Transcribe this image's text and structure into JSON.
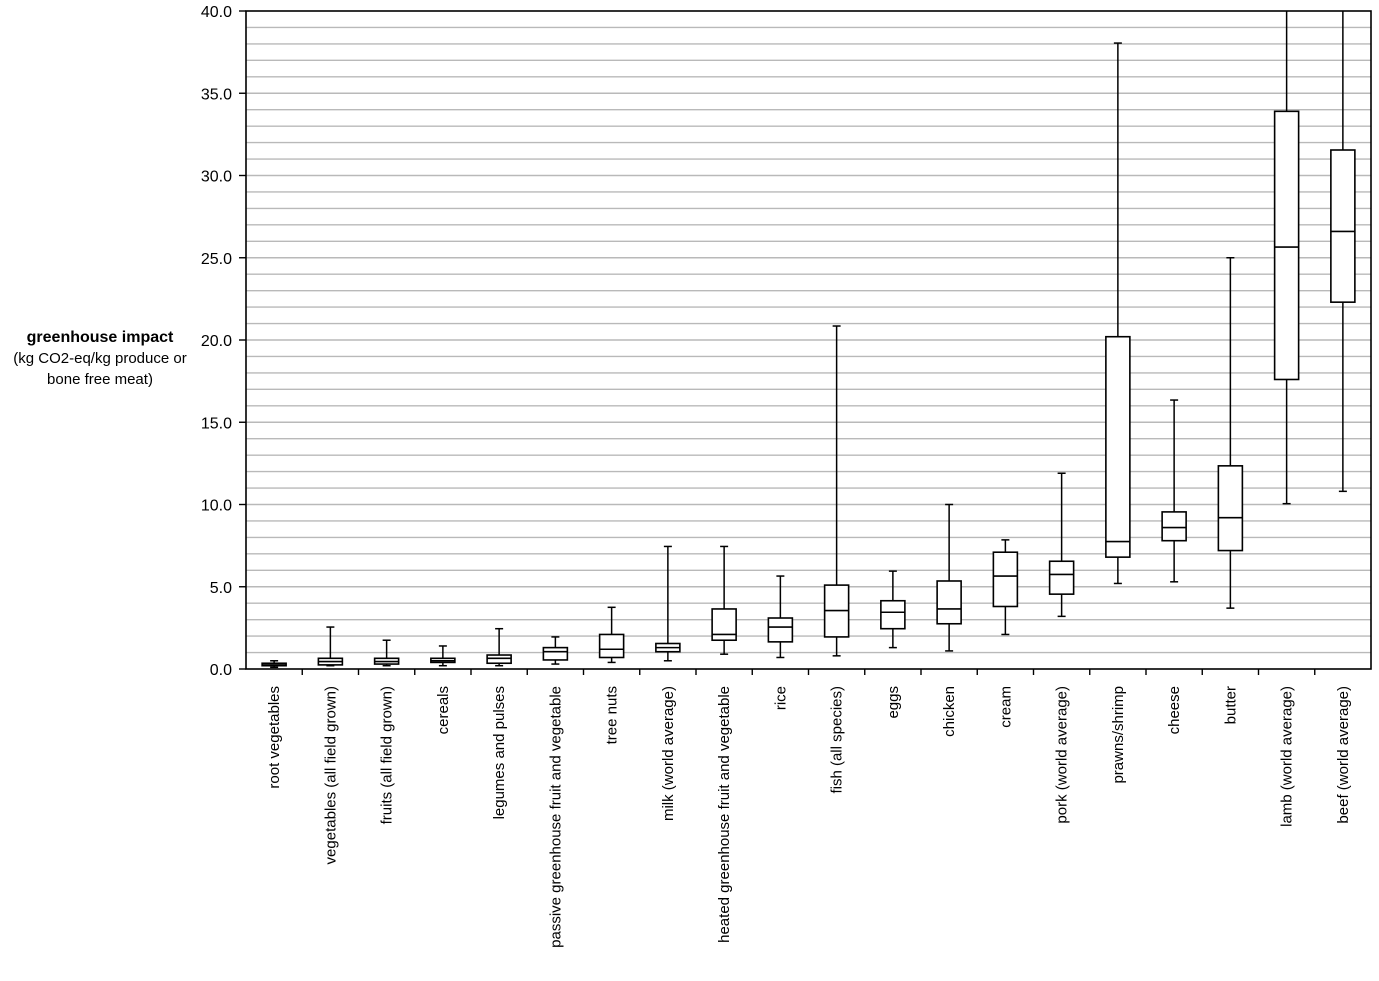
{
  "chart_data": {
    "type": "boxplot",
    "ylabel": "greenhouse impact",
    "ylabel_unit": "(kg CO2-eq/kg produce or bone free meat)",
    "ylim": [
      0,
      40
    ],
    "yticks": [
      "0.0",
      "5.0",
      "10.0",
      "15.0",
      "20.0",
      "25.0",
      "30.0",
      "35.0",
      "40.0"
    ],
    "minor_grid_step": 1,
    "grid": true,
    "categories": [
      "root vegetables",
      "vegetables (all field grown)",
      "fruits (all field grown)",
      "cereals",
      "legumes and pulses",
      "passive greenhouse fruit and vegetable",
      "tree nuts",
      "milk (world average)",
      "heated greenhouse fruit and vegetable",
      "rice",
      "fish (all species)",
      "eggs",
      "chicken",
      "cream",
      "pork (world average)",
      "prawns/shrimp",
      "cheese",
      "butter",
      "lamb (world average)",
      "beef (world average)"
    ],
    "boxes": [
      {
        "min": 0.1,
        "q1": 0.2,
        "median": 0.25,
        "q3": 0.35,
        "max": 0.5
      },
      {
        "min": 0.2,
        "q1": 0.25,
        "median": 0.45,
        "q3": 0.65,
        "max": 2.55
      },
      {
        "min": 0.2,
        "q1": 0.3,
        "median": 0.45,
        "q3": 0.65,
        "max": 1.75
      },
      {
        "min": 0.2,
        "q1": 0.4,
        "median": 0.5,
        "q3": 0.65,
        "max": 1.4
      },
      {
        "min": 0.2,
        "q1": 0.35,
        "median": 0.65,
        "q3": 0.85,
        "max": 2.45
      },
      {
        "min": 0.3,
        "q1": 0.55,
        "median": 1.05,
        "q3": 1.3,
        "max": 1.95
      },
      {
        "min": 0.4,
        "q1": 0.7,
        "median": 1.2,
        "q3": 2.1,
        "max": 3.75
      },
      {
        "min": 0.5,
        "q1": 1.05,
        "median": 1.3,
        "q3": 1.55,
        "max": 7.45
      },
      {
        "min": 0.9,
        "q1": 1.75,
        "median": 2.1,
        "q3": 3.65,
        "max": 7.45
      },
      {
        "min": 0.7,
        "q1": 1.65,
        "median": 2.55,
        "q3": 3.1,
        "max": 5.65
      },
      {
        "min": 0.8,
        "q1": 1.95,
        "median": 3.55,
        "q3": 5.1,
        "max": 20.85
      },
      {
        "min": 1.3,
        "q1": 2.45,
        "median": 3.45,
        "q3": 4.15,
        "max": 5.95
      },
      {
        "min": 1.1,
        "q1": 2.75,
        "median": 3.65,
        "q3": 5.35,
        "max": 10.0
      },
      {
        "min": 2.1,
        "q1": 3.8,
        "median": 5.65,
        "q3": 7.1,
        "max": 7.85
      },
      {
        "min": 3.2,
        "q1": 4.55,
        "median": 5.75,
        "q3": 6.55,
        "max": 11.9
      },
      {
        "min": 5.2,
        "q1": 6.8,
        "median": 7.75,
        "q3": 20.2,
        "max": 38.05
      },
      {
        "min": 5.3,
        "q1": 7.8,
        "median": 8.6,
        "q3": 9.55,
        "max": 16.35
      },
      {
        "min": 3.7,
        "q1": 7.2,
        "median": 9.2,
        "q3": 12.35,
        "max": 25.0
      },
      {
        "min": 10.05,
        "q1": 17.6,
        "median": 25.65,
        "q3": 33.9,
        "max": 40.0
      },
      {
        "min": 10.8,
        "q1": 22.3,
        "median": 26.6,
        "q3": 31.55,
        "max": 40.0
      }
    ]
  }
}
